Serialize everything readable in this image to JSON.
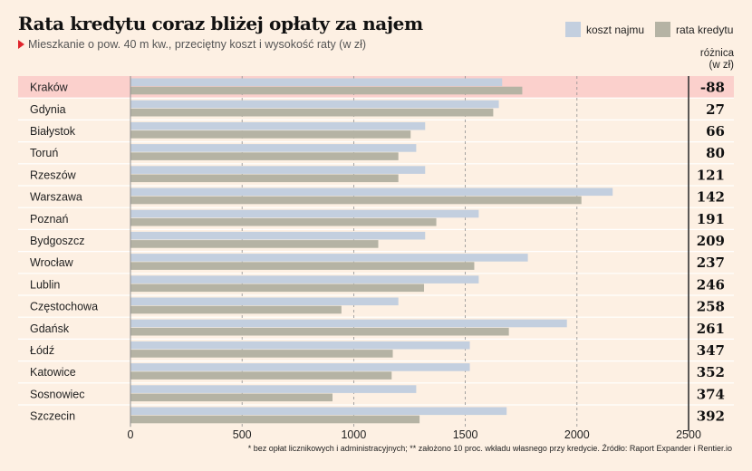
{
  "chart_data": {
    "type": "bar",
    "orientation": "horizontal",
    "title": "Rata kredytu coraz bliżej opłaty za najem",
    "subtitle": "Mieszkanie o pow. 40 m kw., przeciętny koszt i wysokość raty (w zł)",
    "categories": [
      "Kraków",
      "Gdynia",
      "Białystok",
      "Toruń",
      "Rzeszów",
      "Warszawa",
      "Poznań",
      "Bydgoszcz",
      "Wrocław",
      "Lublin",
      "Częstochowa",
      "Gdańsk",
      "Łódź",
      "Katowice",
      "Sosnowiec",
      "Szczecin"
    ],
    "series": [
      {
        "name": "koszt najmu",
        "color": "#c3cfdf",
        "values": [
          1665,
          1650,
          1320,
          1280,
          1320,
          2160,
          1560,
          1320,
          1780,
          1560,
          1200,
          1955,
          1520,
          1520,
          1280,
          1685
        ]
      },
      {
        "name": "rata kredytu",
        "color": "#b5b3a4",
        "values": [
          1755,
          1625,
          1255,
          1200,
          1200,
          2020,
          1370,
          1110,
          1540,
          1315,
          945,
          1695,
          1175,
          1170,
          905,
          1295
        ]
      }
    ],
    "difference": {
      "header_line1": "różnica",
      "header_line2": "(w zł)",
      "values": [
        "-88",
        "27",
        "66",
        "80",
        "121",
        "142",
        "191",
        "209",
        "237",
        "246",
        "258",
        "261",
        "347",
        "352",
        "374",
        "392"
      ]
    },
    "highlight_category": "Kraków",
    "highlight_color": "#fbd0cc",
    "xlim": [
      0,
      2500
    ],
    "xticks": [
      0,
      500,
      1000,
      1500,
      2000,
      2500
    ],
    "grid": true,
    "legend_position": "top-right",
    "footnote": "* bez opłat licznikowych i administracyjnych; ** założono 10 proc. wkładu własnego przy kredycie. Źródło: Raport Expander i Rentier.io"
  }
}
